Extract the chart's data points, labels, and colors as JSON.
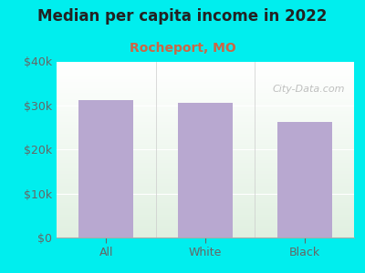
{
  "title": "Median per capita income in 2022",
  "subtitle": "Rocheport, MO",
  "categories": [
    "All",
    "White",
    "Black"
  ],
  "values": [
    31200,
    30500,
    26200
  ],
  "bar_color": "#b8a8d0",
  "title_fontsize": 12,
  "subtitle_fontsize": 10,
  "subtitle_color": "#cc6644",
  "background_color": "#00eeee",
  "tick_color": "#666666",
  "axis_label_color": "#555555",
  "ylim": [
    0,
    40000
  ],
  "yticks": [
    0,
    10000,
    20000,
    30000,
    40000
  ],
  "ytick_labels": [
    "$0",
    "$10k",
    "$20k",
    "$30k",
    "$40k"
  ],
  "watermark": "City-Data.com",
  "watermark_color": "#aaaaaa"
}
